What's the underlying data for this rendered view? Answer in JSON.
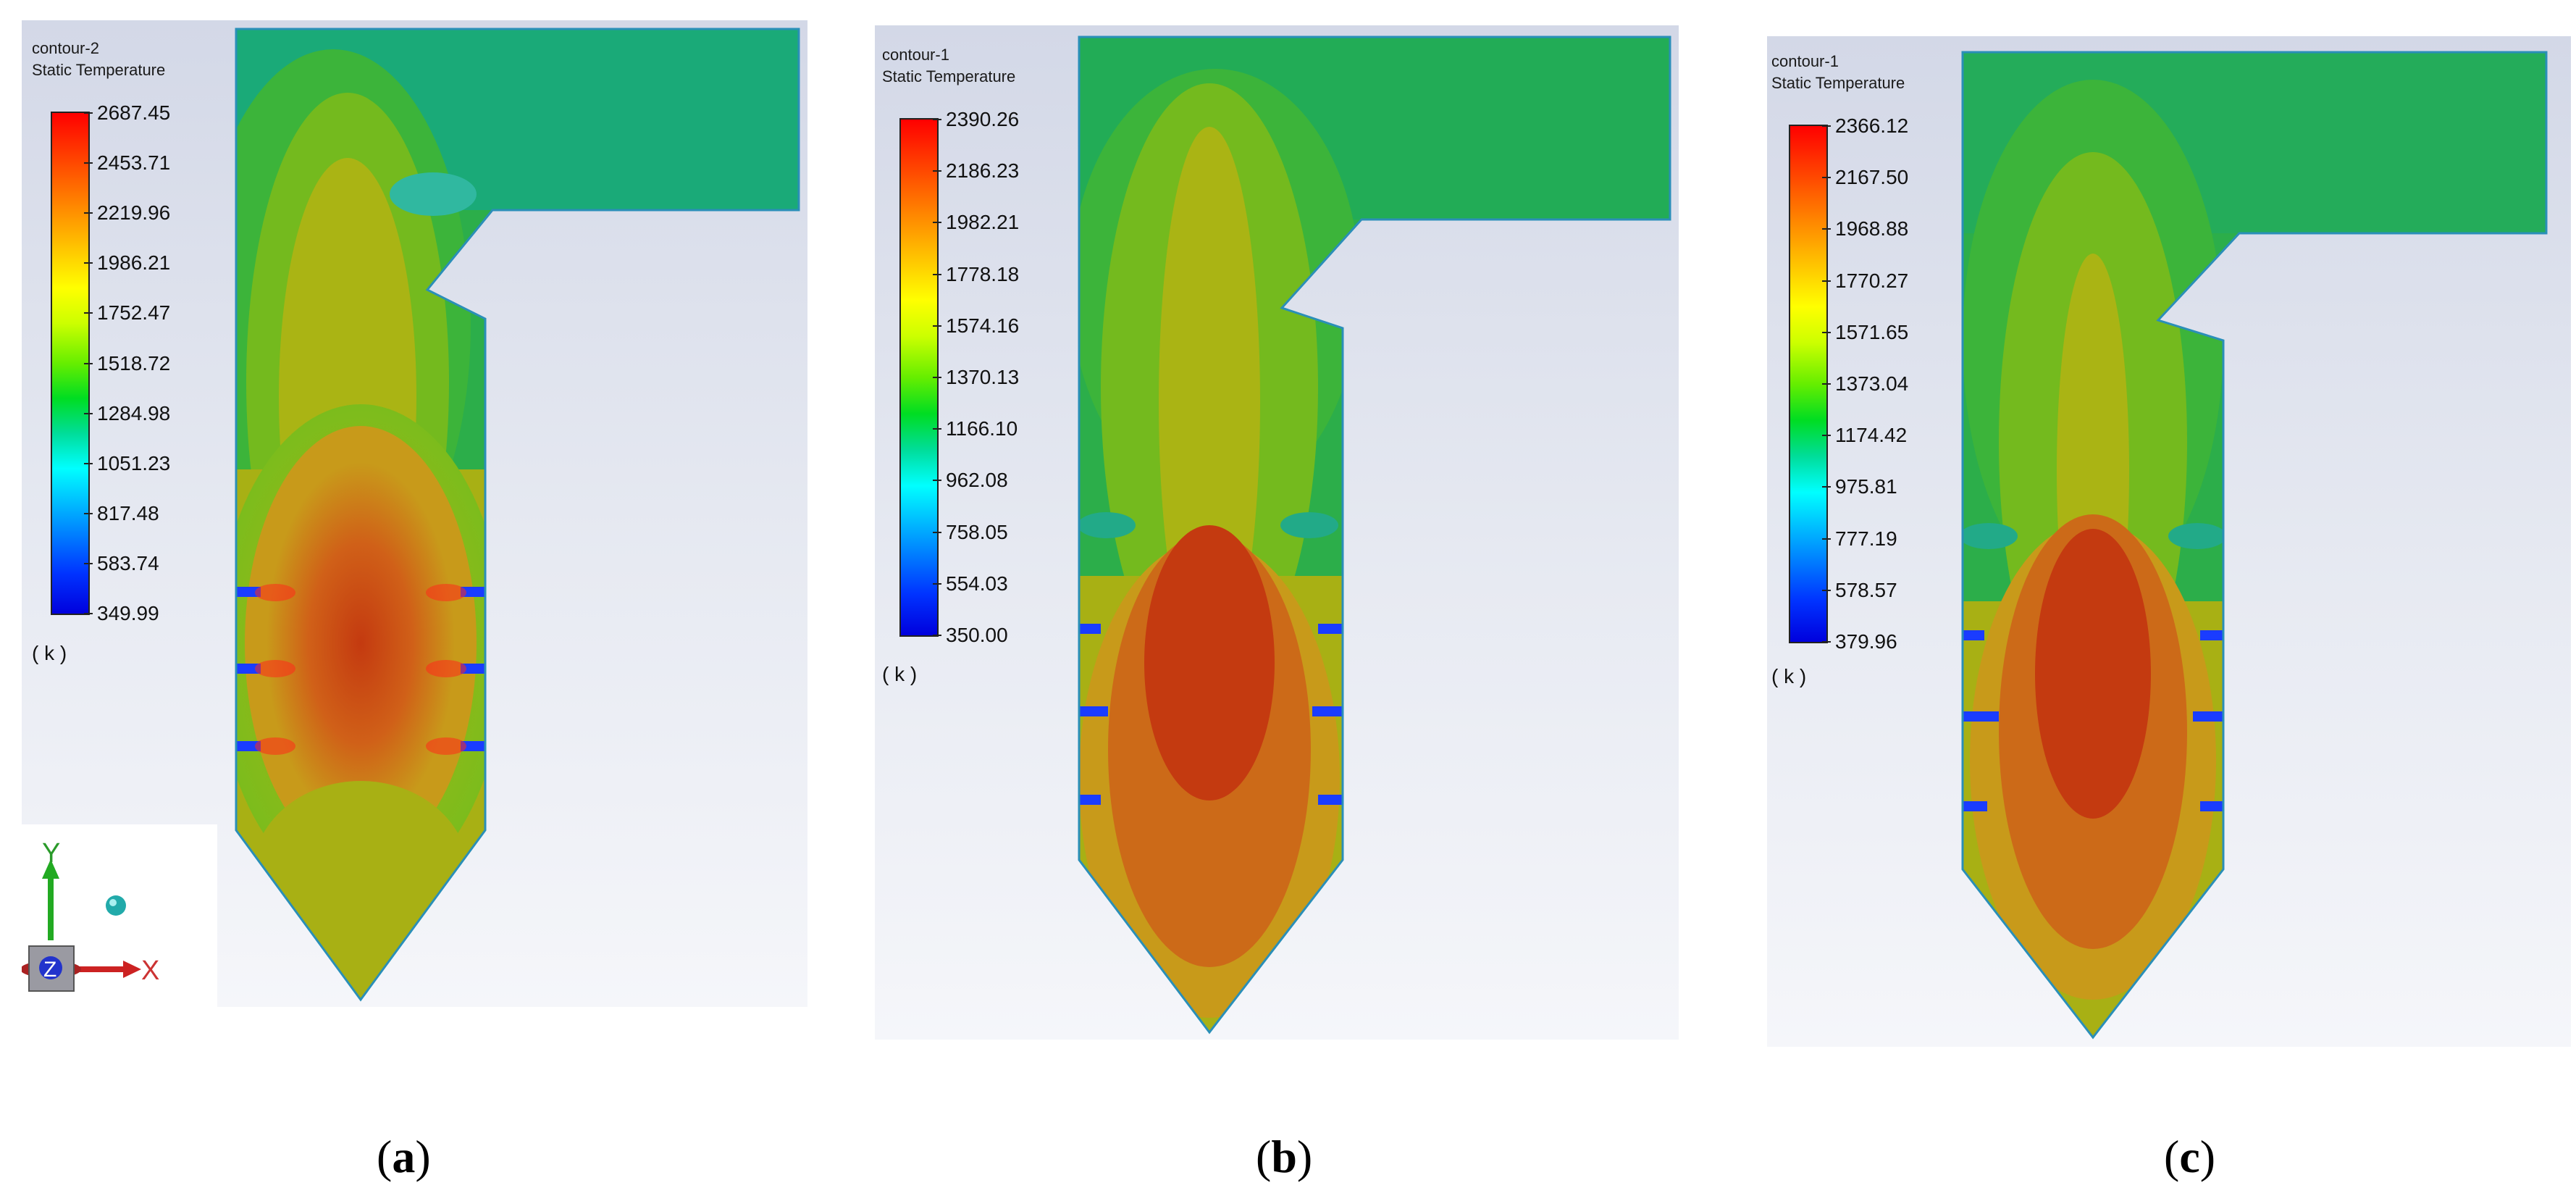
{
  "panels": [
    {
      "id": "a",
      "contour_name": "contour-2",
      "quantity": "Static Temperature",
      "unit": "( k )",
      "caption_letter": "a",
      "ticks": [
        "2687.45",
        "2453.71",
        "2219.96",
        "1986.21",
        "1752.47",
        "1518.72",
        "1284.98",
        "1051.23",
        "817.48",
        "583.74",
        "349.99"
      ]
    },
    {
      "id": "b",
      "contour_name": "contour-1",
      "quantity": "Static Temperature",
      "unit": "( k )",
      "caption_letter": "b",
      "ticks": [
        "2390.26",
        "2186.23",
        "1982.21",
        "1778.18",
        "1574.16",
        "1370.13",
        "1166.10",
        "962.08",
        "758.05",
        "554.03",
        "350.00"
      ]
    },
    {
      "id": "c",
      "contour_name": "contour-1",
      "quantity": "Static Temperature",
      "unit": "( k )",
      "caption_letter": "c",
      "ticks": [
        "2366.12",
        "2167.50",
        "1968.88",
        "1770.27",
        "1571.65",
        "1373.04",
        "1174.42",
        "975.81",
        "777.19",
        "578.57",
        "379.96"
      ]
    }
  ],
  "axis_triad": {
    "y_label": "Y",
    "x_label": "X",
    "z_label": "Z"
  },
  "colors": {
    "hot": "#c43a10",
    "warm": "#a8b214",
    "cool": "#2bb04a",
    "cold": "#1a3cff"
  }
}
